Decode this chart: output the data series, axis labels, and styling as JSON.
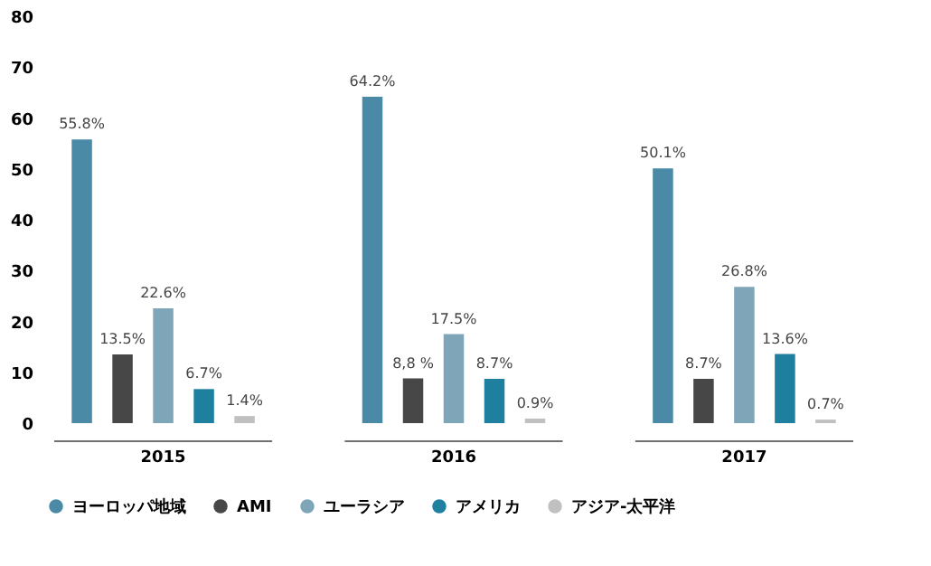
{
  "chart_data": {
    "type": "bar",
    "categories": [
      "2015",
      "2016",
      "2017"
    ],
    "series": [
      {
        "name": "ヨーロッパ地域",
        "color": "#4a8aa6",
        "values": [
          55.8,
          64.2,
          50.1
        ],
        "value_labels": [
          "55.8%",
          "64.2%",
          "50.1%"
        ]
      },
      {
        "name": "AMI",
        "color": "#474747",
        "values": [
          13.5,
          8.8,
          8.7
        ],
        "value_labels": [
          "13.5%",
          "8,8 %",
          "8.7%"
        ]
      },
      {
        "name": "ユーラシア",
        "color": "#7fa6b8",
        "values": [
          22.6,
          17.5,
          26.8
        ],
        "value_labels": [
          "22.6%",
          "17.5%",
          "26.8%"
        ]
      },
      {
        "name": "アメリカ",
        "color": "#1e7f9e",
        "values": [
          6.7,
          8.7,
          13.6
        ],
        "value_labels": [
          "6.7%",
          "8.7%",
          "13.6%"
        ]
      },
      {
        "name": "アジア-太平洋",
        "color": "#c0c0c0",
        "values": [
          1.4,
          0.9,
          0.7
        ],
        "value_labels": [
          "1.4%",
          "0.9%",
          "0.7%"
        ]
      }
    ],
    "ylim": [
      0,
      80
    ],
    "yticks": [
      0,
      10,
      20,
      30,
      40,
      50,
      60,
      70,
      80
    ],
    "grid": false,
    "legend": "bottom"
  }
}
